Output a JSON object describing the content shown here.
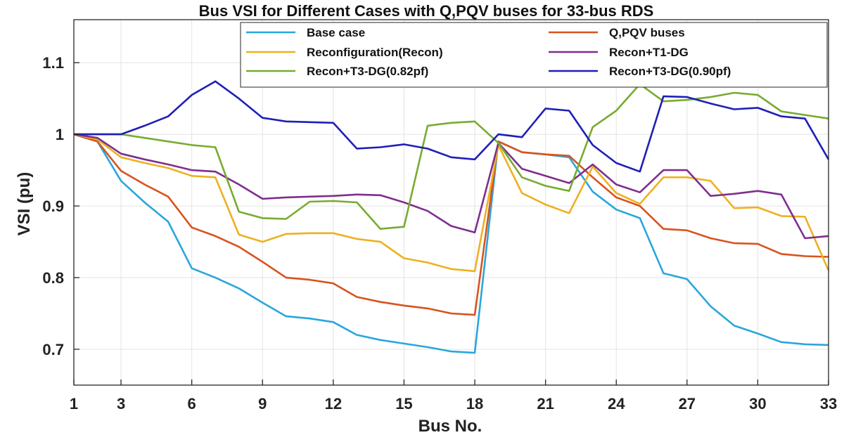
{
  "chart_data": {
    "type": "line",
    "title": "Bus VSI for Different Cases with Q,PQV buses for 33-bus RDS",
    "xlabel": "Bus No.",
    "ylabel": "VSI (pu)",
    "xlim": [
      1,
      33
    ],
    "ylim": [
      0.65,
      1.16
    ],
    "xticks": [
      1,
      3,
      6,
      9,
      12,
      15,
      18,
      21,
      24,
      27,
      30,
      33
    ],
    "yticks": [
      0.7,
      0.8,
      0.9,
      1,
      1.1
    ],
    "ytick_labels": [
      "0.7",
      "0.8",
      "0.9",
      "1",
      "1.1"
    ],
    "grid": true,
    "legend_position": "top",
    "x": [
      1,
      2,
      3,
      4,
      5,
      6,
      7,
      8,
      9,
      10,
      11,
      12,
      13,
      14,
      15,
      16,
      17,
      18,
      19,
      20,
      21,
      22,
      23,
      24,
      25,
      26,
      27,
      28,
      29,
      30,
      31,
      32,
      33
    ],
    "series": [
      {
        "name": "Base case",
        "color": "#2aa6dd",
        "values": [
          1,
          0.99,
          0.935,
          0.905,
          0.878,
          0.813,
          0.8,
          0.785,
          0.765,
          0.746,
          0.743,
          0.738,
          0.72,
          0.713,
          0.708,
          0.703,
          0.697,
          0.695,
          0.99,
          0.975,
          0.972,
          0.968,
          0.92,
          0.895,
          0.883,
          0.806,
          0.798,
          0.76,
          0.733,
          0.722,
          0.71,
          0.707,
          0.706
        ]
      },
      {
        "name": "Q,PQV buses",
        "color": "#d9531e",
        "values": [
          1,
          0.99,
          0.949,
          0.93,
          0.913,
          0.87,
          0.858,
          0.843,
          0.822,
          0.8,
          0.797,
          0.792,
          0.773,
          0.766,
          0.761,
          0.757,
          0.75,
          0.748,
          0.99,
          0.975,
          0.972,
          0.97,
          0.94,
          0.912,
          0.9,
          0.868,
          0.866,
          0.855,
          0.848,
          0.847,
          0.833,
          0.83,
          0.829
        ]
      },
      {
        "name": "Reconfiguration(Recon)",
        "color": "#edb120",
        "values": [
          1,
          0.993,
          0.968,
          0.96,
          0.953,
          0.942,
          0.94,
          0.86,
          0.85,
          0.861,
          0.862,
          0.862,
          0.854,
          0.85,
          0.827,
          0.821,
          0.812,
          0.809,
          0.985,
          0.918,
          0.902,
          0.89,
          0.955,
          0.918,
          0.903,
          0.94,
          0.94,
          0.935,
          0.897,
          0.898,
          0.886,
          0.885,
          0.81
        ]
      },
      {
        "name": "Recon+T1-DG",
        "color": "#7e2f8e",
        "values": [
          1,
          0.995,
          0.973,
          0.965,
          0.958,
          0.95,
          0.948,
          0.93,
          0.91,
          0.912,
          0.913,
          0.914,
          0.916,
          0.915,
          0.905,
          0.893,
          0.872,
          0.863,
          0.988,
          0.952,
          0.942,
          0.932,
          0.958,
          0.93,
          0.919,
          0.95,
          0.95,
          0.914,
          0.917,
          0.921,
          0.916,
          0.855,
          0.858
        ]
      },
      {
        "name": "Recon+T3-DG(0.82pf)",
        "color": "#77ac30",
        "values": [
          1,
          1,
          1,
          0.995,
          0.99,
          0.985,
          0.982,
          0.892,
          0.883,
          0.882,
          0.906,
          0.907,
          0.905,
          0.868,
          0.871,
          1.012,
          1.016,
          1.018,
          0.988,
          0.94,
          0.928,
          0.921,
          1.01,
          1.033,
          1.07,
          1.046,
          1.048,
          1.052,
          1.058,
          1.055,
          1.032,
          1.027,
          1.022
        ]
      },
      {
        "name": "Recon+T3-DG(0.90pf)",
        "color": "#1f1fb8",
        "values": [
          1,
          1,
          1,
          1.012,
          1.025,
          1.055,
          1.074,
          1.05,
          1.023,
          1.018,
          1.017,
          1.016,
          0.98,
          0.982,
          0.986,
          0.98,
          0.968,
          0.965,
          1.0,
          0.996,
          1.036,
          1.033,
          0.985,
          0.96,
          0.948,
          1.053,
          1.052,
          1.043,
          1.035,
          1.037,
          1.025,
          1.022,
          0.965
        ]
      }
    ]
  }
}
